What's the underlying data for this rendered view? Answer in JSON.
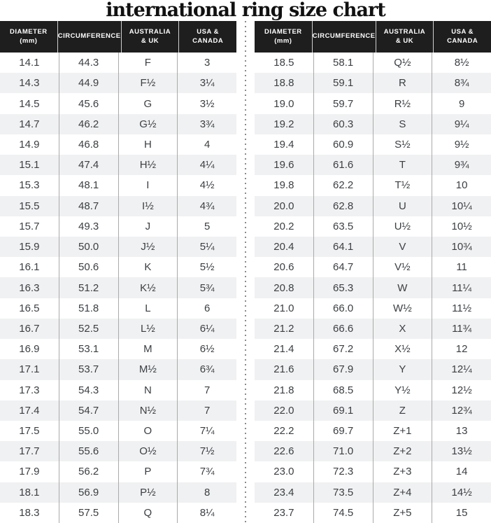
{
  "title": "international ring size chart",
  "chart_data": {
    "type": "table",
    "title": "international ring size chart",
    "columns": [
      "DIAMETER (mm)",
      "CIRCUMFERENCE",
      "AUSTRALIA & UK",
      "USA & CANADA"
    ],
    "header_lines": [
      [
        "DIAMETER",
        "(mm)"
      ],
      [
        "CIRCUMFERENCE",
        ""
      ],
      [
        "AUSTRALIA",
        "& UK"
      ],
      [
        "USA &",
        "CANADA"
      ]
    ],
    "left_rows": [
      [
        "14.1",
        "44.3",
        "F",
        "3"
      ],
      [
        "14.3",
        "44.9",
        "F½",
        "3¼"
      ],
      [
        "14.5",
        "45.6",
        "G",
        "3½"
      ],
      [
        "14.7",
        "46.2",
        "G½",
        "3¾"
      ],
      [
        "14.9",
        "46.8",
        "H",
        "4"
      ],
      [
        "15.1",
        "47.4",
        "H½",
        "4¼"
      ],
      [
        "15.3",
        "48.1",
        "I",
        "4½"
      ],
      [
        "15.5",
        "48.7",
        "I½",
        "4¾"
      ],
      [
        "15.7",
        "49.3",
        "J",
        "5"
      ],
      [
        "15.9",
        "50.0",
        "J½",
        "5¼"
      ],
      [
        "16.1",
        "50.6",
        "K",
        "5½"
      ],
      [
        "16.3",
        "51.2",
        "K½",
        "5¾"
      ],
      [
        "16.5",
        "51.8",
        "L",
        "6"
      ],
      [
        "16.7",
        "52.5",
        "L½",
        "6¼"
      ],
      [
        "16.9",
        "53.1",
        "M",
        "6½"
      ],
      [
        "17.1",
        "53.7",
        "M½",
        "6¾"
      ],
      [
        "17.3",
        "54.3",
        "N",
        "7"
      ],
      [
        "17.4",
        "54.7",
        "N½",
        "7"
      ],
      [
        "17.5",
        "55.0",
        "O",
        "7¼"
      ],
      [
        "17.7",
        "55.6",
        "O½",
        "7½"
      ],
      [
        "17.9",
        "56.2",
        "P",
        "7¾"
      ],
      [
        "18.1",
        "56.9",
        "P½",
        "8"
      ],
      [
        "18.3",
        "57.5",
        "Q",
        "8¼"
      ]
    ],
    "right_rows": [
      [
        "18.5",
        "58.1",
        "Q½",
        "8½"
      ],
      [
        "18.8",
        "59.1",
        "R",
        "8¾"
      ],
      [
        "19.0",
        "59.7",
        "R½",
        "9"
      ],
      [
        "19.2",
        "60.3",
        "S",
        "9¼"
      ],
      [
        "19.4",
        "60.9",
        "S½",
        "9½"
      ],
      [
        "19.6",
        "61.6",
        "T",
        "9¾"
      ],
      [
        "19.8",
        "62.2",
        "T½",
        "10"
      ],
      [
        "20.0",
        "62.8",
        "U",
        "10¼"
      ],
      [
        "20.2",
        "63.5",
        "U½",
        "10½"
      ],
      [
        "20.4",
        "64.1",
        "V",
        "10¾"
      ],
      [
        "20.6",
        "64.7",
        "V½",
        "11"
      ],
      [
        "20.8",
        "65.3",
        "W",
        "11¼"
      ],
      [
        "21.0",
        "66.0",
        "W½",
        "11½"
      ],
      [
        "21.2",
        "66.6",
        "X",
        "11¾"
      ],
      [
        "21.4",
        "67.2",
        "X½",
        "12"
      ],
      [
        "21.6",
        "67.9",
        "Y",
        "12¼"
      ],
      [
        "21.8",
        "68.5",
        "Y½",
        "12½"
      ],
      [
        "22.0",
        "69.1",
        "Z",
        "12¾"
      ],
      [
        "22.2",
        "69.7",
        "Z+1",
        "13"
      ],
      [
        "22.6",
        "71.0",
        "Z+2",
        "13½"
      ],
      [
        "23.0",
        "72.3",
        "Z+3",
        "14"
      ],
      [
        "23.4",
        "73.5",
        "Z+4",
        "14½"
      ],
      [
        "23.7",
        "74.5",
        "Z+5",
        "15"
      ]
    ]
  },
  "colors": {
    "header_bg": "#1e1e1e",
    "header_text": "#ffffff",
    "row_alt_bg": "#f0f1f2",
    "cell_text": "#3b3f43",
    "rule_color": "#aaaaaa",
    "dot_color": "#8a8a8a"
  }
}
